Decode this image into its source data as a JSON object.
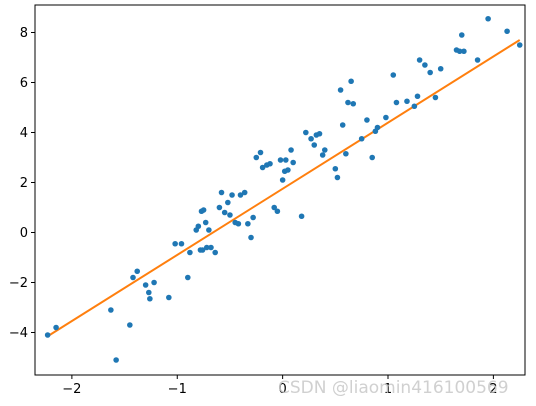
{
  "chart_data": {
    "type": "scatter",
    "xlim": [
      -2.35,
      2.3
    ],
    "ylim": [
      -5.7,
      9.1
    ],
    "xticks": [
      -2,
      -1,
      0,
      1,
      2
    ],
    "xtick_labels": [
      "−2",
      "−1",
      "0",
      "1",
      "2"
    ],
    "yticks": [
      -4,
      -2,
      0,
      2,
      4,
      6,
      8
    ],
    "ytick_labels": [
      "−4",
      "−2",
      "0",
      "2",
      "4",
      "6",
      "8"
    ],
    "grid": false,
    "series": [
      {
        "kind": "points",
        "color": "#1f77b4",
        "x": [
          -2.23,
          -2.15,
          -1.63,
          -1.58,
          -1.45,
          -1.42,
          -1.38,
          -1.3,
          -1.27,
          -1.26,
          -1.22,
          -1.08,
          -1.02,
          -0.96,
          -0.9,
          -0.88,
          -0.82,
          -0.8,
          -0.78,
          -0.77,
          -0.76,
          -0.75,
          -0.73,
          -0.72,
          -0.7,
          -0.68,
          -0.64,
          -0.6,
          -0.58,
          -0.55,
          -0.52,
          -0.5,
          -0.48,
          -0.45,
          -0.42,
          -0.4,
          -0.36,
          -0.33,
          -0.3,
          -0.28,
          -0.25,
          -0.21,
          -0.19,
          -0.15,
          -0.12,
          -0.08,
          -0.05,
          -0.02,
          0.0,
          0.02,
          0.03,
          0.05,
          0.08,
          0.1,
          0.18,
          0.22,
          0.27,
          0.3,
          0.32,
          0.35,
          0.38,
          0.4,
          0.5,
          0.52,
          0.55,
          0.57,
          0.6,
          0.62,
          0.65,
          0.67,
          0.75,
          0.8,
          0.85,
          0.88,
          0.9,
          0.98,
          1.05,
          1.08,
          1.18,
          1.25,
          1.28,
          1.3,
          1.35,
          1.4,
          1.45,
          1.5,
          1.65,
          1.68,
          1.7,
          1.72,
          1.85,
          1.95,
          2.13,
          2.25
        ],
        "y": [
          -4.1,
          -3.8,
          -3.1,
          -5.1,
          -3.7,
          -1.8,
          -1.55,
          -2.1,
          -2.4,
          -2.65,
          -2.0,
          -2.6,
          -0.45,
          -0.45,
          -1.8,
          -0.8,
          0.1,
          0.25,
          -0.7,
          0.85,
          -0.7,
          0.9,
          0.4,
          -0.6,
          0.1,
          -0.6,
          -0.8,
          1.0,
          1.6,
          0.8,
          1.2,
          0.7,
          1.5,
          0.4,
          0.35,
          1.5,
          1.6,
          0.35,
          -0.2,
          0.6,
          3.0,
          3.2,
          2.6,
          2.7,
          2.75,
          1.0,
          0.85,
          2.9,
          2.1,
          2.45,
          2.9,
          2.5,
          3.3,
          2.8,
          0.65,
          4.0,
          3.75,
          3.5,
          3.9,
          3.95,
          3.1,
          3.3,
          2.55,
          2.2,
          5.7,
          4.3,
          3.15,
          5.2,
          6.05,
          5.15,
          3.75,
          4.5,
          3.0,
          4.05,
          4.2,
          4.6,
          6.3,
          5.2,
          5.25,
          5.05,
          5.45,
          6.9,
          6.7,
          6.4,
          5.4,
          6.55,
          7.3,
          7.25,
          7.9,
          7.25,
          6.9,
          8.55,
          8.05,
          7.5
        ]
      },
      {
        "kind": "line",
        "color": "#ff7f0e",
        "x": [
          -2.23,
          2.25
        ],
        "y": [
          -4.15,
          7.7
        ]
      }
    ]
  },
  "watermark": "CSDN @liaomin416100569"
}
